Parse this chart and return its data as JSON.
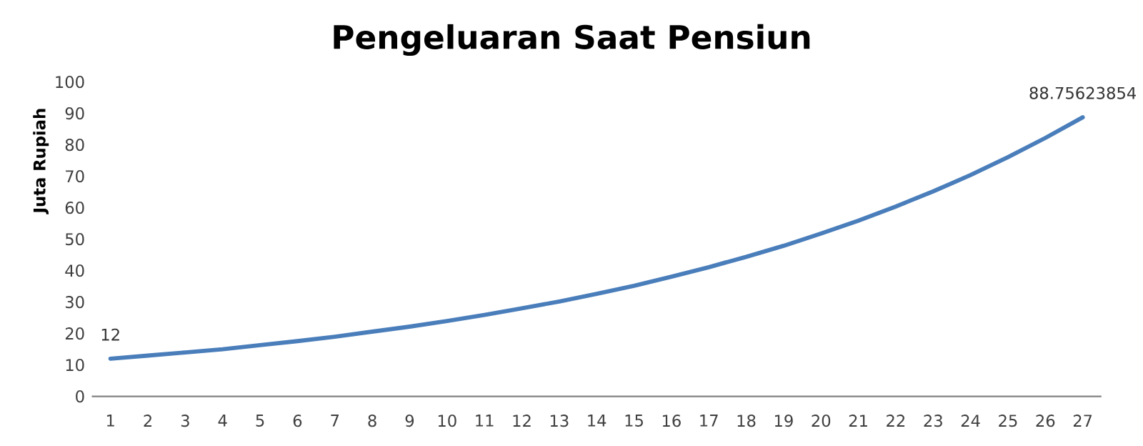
{
  "chart_data": {
    "type": "line",
    "title": "Pengeluaran Saat Pensiun",
    "ylabel": "Juta Rupiah",
    "categories": [
      "1",
      "2",
      "3",
      "4",
      "5",
      "6",
      "7",
      "8",
      "9",
      "10",
      "11",
      "12",
      "13",
      "14",
      "15",
      "16",
      "17",
      "18",
      "19",
      "20",
      "21",
      "22",
      "23",
      "24",
      "25",
      "26",
      "27"
    ],
    "series": [
      {
        "color": "#4a7ebb",
        "values": [
          12,
          13,
          14,
          15,
          16.3,
          17.6,
          19,
          20.6,
          22.2,
          24,
          25.9,
          28,
          30.2,
          32.6,
          35.2,
          38.1,
          41.1,
          44.4,
          47.9,
          51.8,
          55.9,
          60.4,
          65.2,
          70.4,
          76.1,
          82.2,
          88.75623854
        ],
        "value_labels": [
          "12",
          null,
          null,
          null,
          null,
          null,
          null,
          null,
          null,
          null,
          null,
          null,
          null,
          null,
          null,
          null,
          null,
          null,
          null,
          null,
          null,
          null,
          null,
          null,
          null,
          null,
          "88.75623854"
        ]
      }
    ],
    "ylim": [
      0,
      100
    ],
    "yticks": [
      0,
      10,
      20,
      30,
      40,
      50,
      60,
      70,
      80,
      90,
      100
    ],
    "grid": false,
    "marker": "none",
    "line_style": "solid"
  }
}
